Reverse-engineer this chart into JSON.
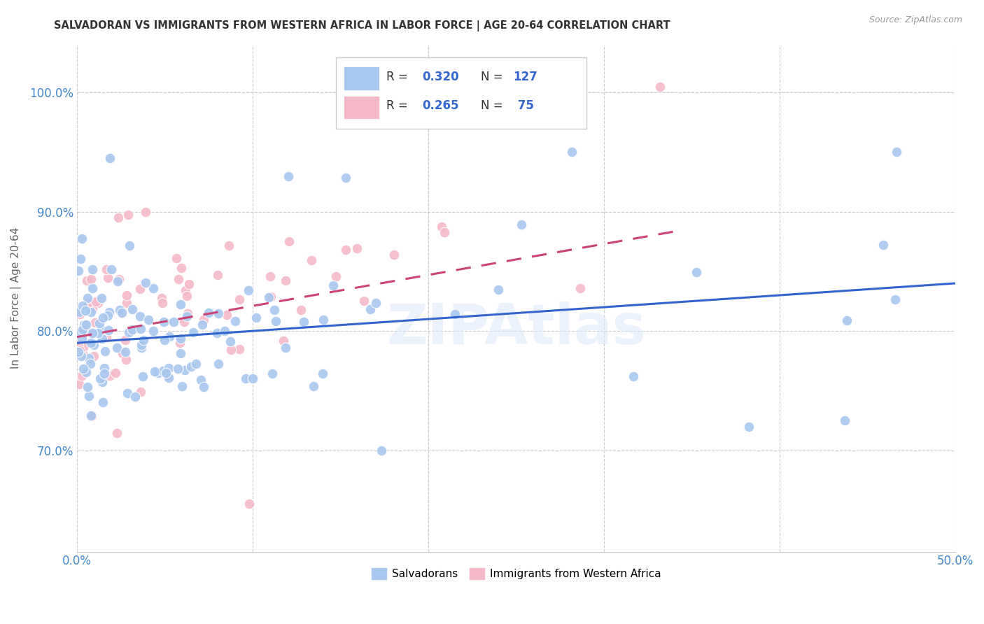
{
  "title": "SALVADORAN VS IMMIGRANTS FROM WESTERN AFRICA IN LABOR FORCE | AGE 20-64 CORRELATION CHART",
  "source": "Source: ZipAtlas.com",
  "ylabel": "In Labor Force | Age 20-64",
  "xlim": [
    0.0,
    0.5
  ],
  "ylim": [
    0.615,
    1.04
  ],
  "yticks": [
    0.7,
    0.8,
    0.9,
    1.0
  ],
  "ytick_labels": [
    "70.0%",
    "80.0%",
    "90.0%",
    "100.0%"
  ],
  "xticks": [
    0.0,
    0.1,
    0.2,
    0.3,
    0.4,
    0.5
  ],
  "xtick_labels": [
    "0.0%",
    "",
    "",
    "",
    "",
    "50.0%"
  ],
  "blue_R": 0.32,
  "blue_N": 127,
  "pink_R": 0.265,
  "pink_N": 75,
  "blue_color": "#a8c8f0",
  "pink_color": "#f5b8c8",
  "blue_line_color": "#3366cc",
  "pink_line_color": "#cc4477",
  "background_color": "#ffffff",
  "grid_color": "#cccccc",
  "title_color": "#333333",
  "axis_label_color": "#4488cc",
  "watermark": "ZIPAtlas",
  "blue_intercept": 0.79,
  "blue_slope": 0.1,
  "pink_intercept": 0.795,
  "pink_slope": 0.26
}
